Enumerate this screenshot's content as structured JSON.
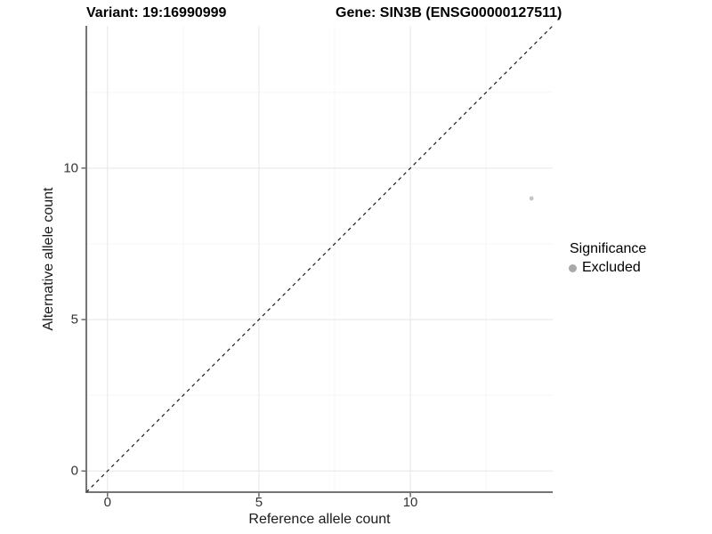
{
  "header": {
    "variant_title": "Variant: 19:16990999",
    "gene_title": "Gene: SIN3B (ENSG00000127511)"
  },
  "chart_data": {
    "type": "scatter",
    "title_left": "Variant: 19:16990999",
    "title_right": "Gene: SIN3B (ENSG00000127511)",
    "xlabel": "Reference allele count",
    "ylabel": "Alternative allele count",
    "xlim": [
      -0.7,
      14.7
    ],
    "ylim": [
      -0.7,
      14.7
    ],
    "x_ticks": [
      0,
      5,
      10
    ],
    "y_ticks": [
      0,
      5,
      10
    ],
    "x_minor_ticks": [
      2.5,
      7.5,
      12.5
    ],
    "y_minor_ticks": [
      2.5,
      7.5,
      12.5
    ],
    "grid": "on",
    "reference_line": {
      "slope": 1,
      "intercept": 0,
      "style": "dashed",
      "color": "#1a1a1a"
    },
    "series": [
      {
        "name": "Excluded",
        "color": "#c4c4c4",
        "points": [
          {
            "x": 14,
            "y": 9
          }
        ]
      }
    ],
    "legend": {
      "title": "Significance",
      "position": "right",
      "entries": [
        {
          "label": "Excluded",
          "color": "#a9a9a9"
        }
      ]
    },
    "colors": {
      "background": "#ffffff",
      "grid_major": "#e8e8e8",
      "grid_minor": "#f2f2f2",
      "axis_line": "#474747",
      "tick_text": "#333333",
      "point": "#c4c4c4"
    }
  }
}
